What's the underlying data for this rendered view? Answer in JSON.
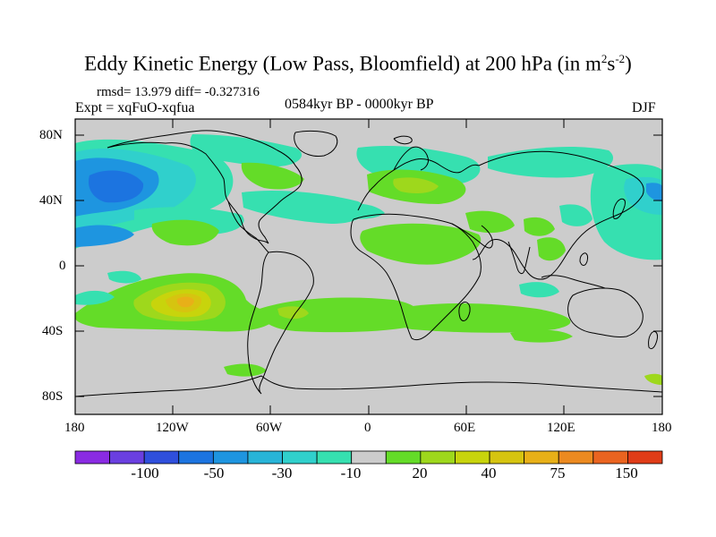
{
  "title": {
    "main": "Eddy Kinetic Energy (Low Pass, Bloomfield) at 200 hPa (in m",
    "sup1": "2",
    "mid": "s",
    "sup2": "-2",
    "end": ")"
  },
  "stats": "rmsd= 13.979 diff= -0.327316",
  "experiment": "Expt = xqFuO-xqfua",
  "period": "0584kyr BP - 0000kyr BP",
  "season": "DJF",
  "axes": {
    "lat_labels": [
      "80N",
      "40N",
      "0",
      "40S",
      "80S"
    ],
    "lon_labels": [
      "180",
      "120W",
      "60W",
      "0",
      "60E",
      "120E",
      "180"
    ]
  },
  "colorbar": {
    "colors": [
      "#8a2be2",
      "#6a3fe0",
      "#2f4fdc",
      "#1c74e0",
      "#1e95e0",
      "#28b4d8",
      "#30d0cc",
      "#36e0b0",
      "#cccccc",
      "#64dc28",
      "#9ed81c",
      "#c8d40c",
      "#d6c410",
      "#e8b018",
      "#ec8a20",
      "#ea6420",
      "#e03c18"
    ],
    "labels": [
      "-100",
      "-50",
      "-30",
      "-10",
      "20",
      "40",
      "75",
      "150"
    ]
  },
  "colors": {
    "land_background": "#cccccc",
    "coast": "#000000"
  }
}
